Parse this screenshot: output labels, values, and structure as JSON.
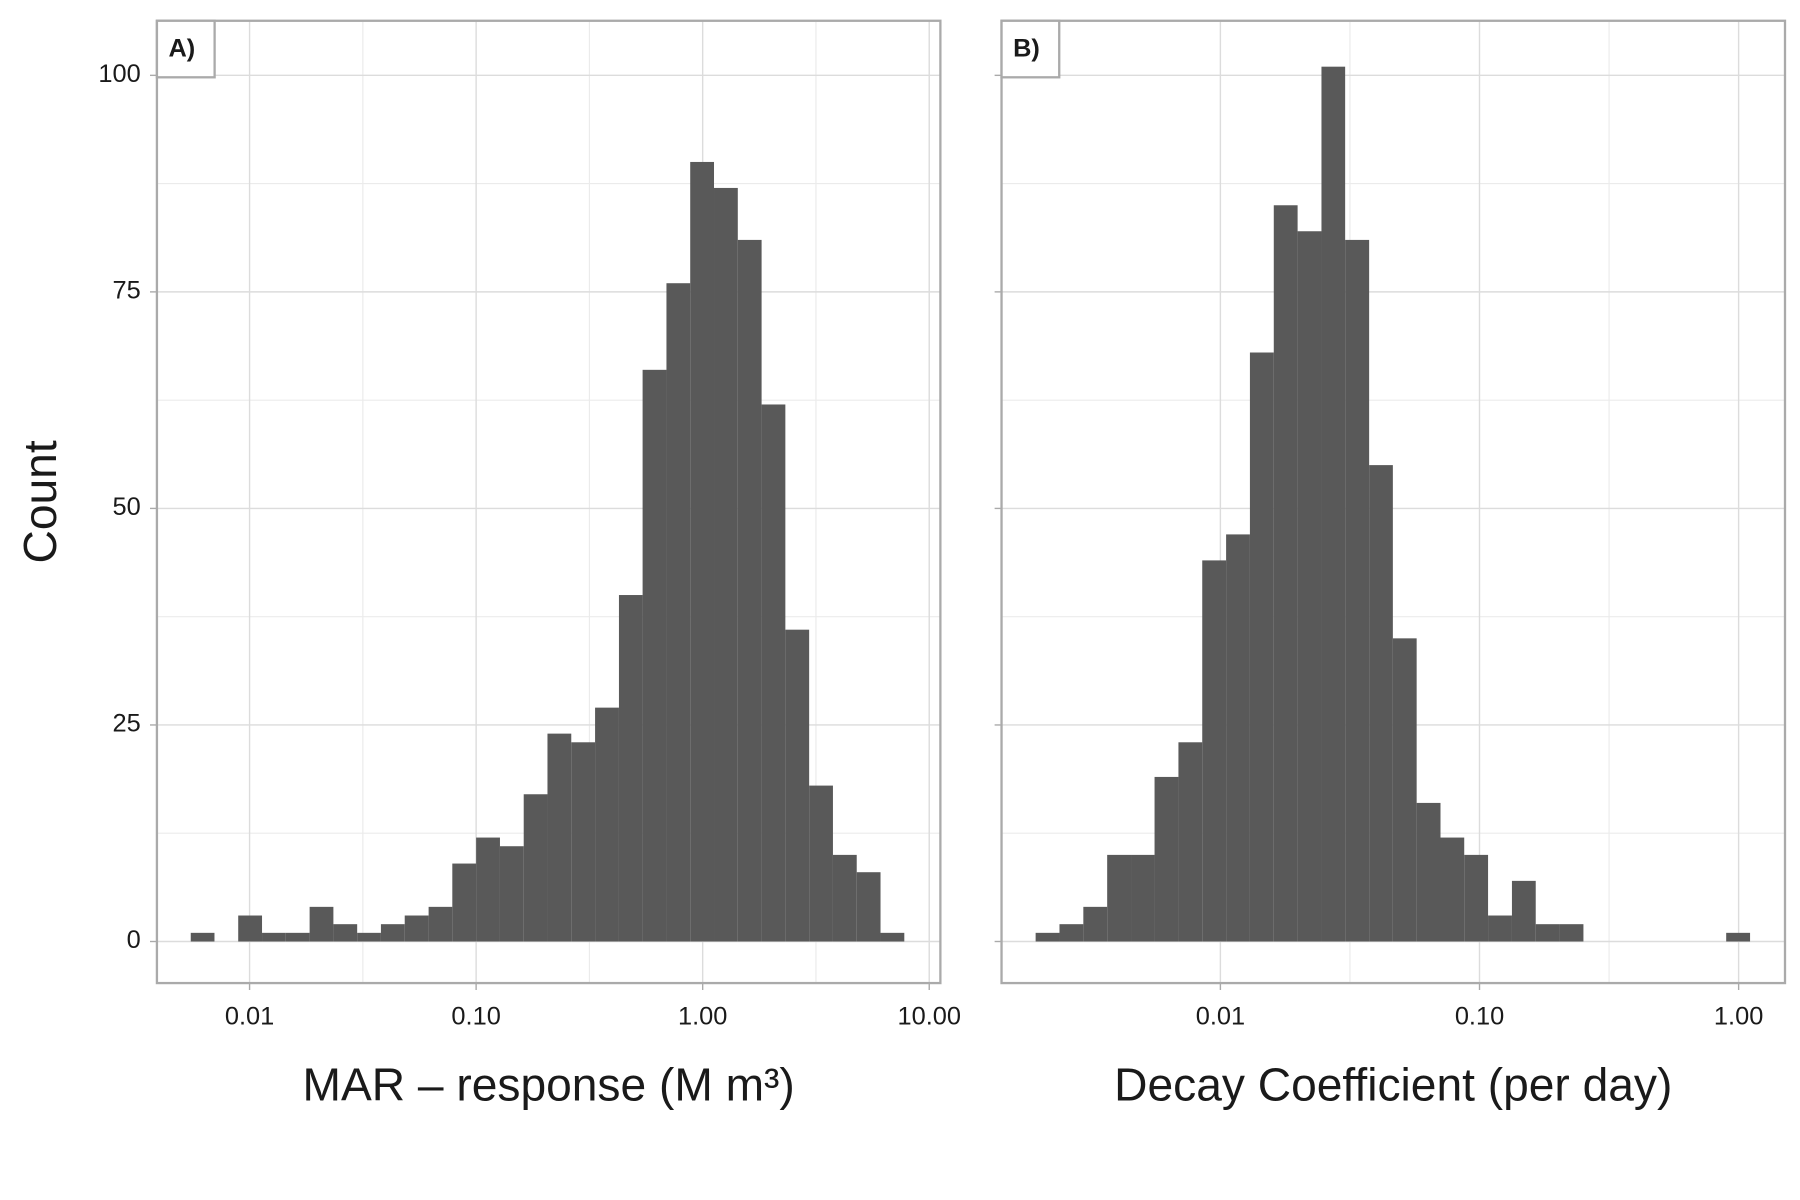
{
  "chart_data": [
    {
      "type": "histogram",
      "panel_label": "A)",
      "x_label": "MAR – response (M m³)",
      "y_label": "Count",
      "log_x": true,
      "grid": true,
      "color": "#595959",
      "ytick_labels": true,
      "bins": [
        0.0055,
        0.007,
        0.00891,
        0.01135,
        0.01445,
        0.01841,
        0.02344,
        0.02985,
        0.038,
        0.0484,
        0.0617,
        0.0785,
        0.1,
        0.1274,
        0.1622,
        0.2065,
        0.263,
        0.335,
        0.427,
        0.543,
        0.692,
        0.881,
        1.122,
        1.429,
        1.82,
        2.317,
        2.951,
        3.758,
        4.786,
        6.095,
        7.762
      ],
      "counts": [
        1,
        0,
        3,
        1,
        1,
        4,
        2,
        1,
        2,
        3,
        4,
        9,
        12,
        11,
        17,
        24,
        23,
        27,
        40,
        66,
        76,
        90,
        87,
        81,
        62,
        36,
        18,
        10,
        8,
        1
      ],
      "xlim": [
        0.0039,
        11.2
      ],
      "ylim": [
        -4.8,
        106.3
      ],
      "xticks": [
        0.01,
        {
          "value": 0.1,
          "label": "0.10"
        },
        {
          "value": 1,
          "label": "1.00"
        },
        {
          "value": 10,
          "label": "10.00"
        }
      ],
      "yticks": [
        0,
        25,
        50,
        75,
        100
      ]
    },
    {
      "type": "histogram",
      "panel_label": "B)",
      "x_label": "Decay Coefficient (per day)",
      "log_x": true,
      "grid": true,
      "color": "#595959",
      "ytick_labels": false,
      "bins": [
        0.001936,
        0.002393,
        0.002958,
        0.003656,
        0.004519,
        0.00557,
        0.006887,
        0.00851,
        0.01052,
        0.013,
        0.01607,
        0.01986,
        0.02455,
        0.0303,
        0.0375,
        0.0463,
        0.0572,
        0.0707,
        0.0873,
        0.1079,
        0.1334,
        0.1648,
        0.2037,
        0.2518,
        0.3112,
        0.3837,
        0.4742,
        0.5861,
        0.7244,
        0.8954,
        1.107
      ],
      "counts": [
        1,
        2,
        4,
        10,
        10,
        19,
        23,
        44,
        47,
        68,
        85,
        82,
        101,
        81,
        55,
        35,
        16,
        12,
        10,
        3,
        7,
        2,
        2,
        0,
        0,
        0,
        0,
        0,
        0,
        1
      ],
      "xlim": [
        0.00143,
        1.51
      ],
      "ylim": [
        -4.8,
        106.3
      ],
      "xticks": [
        0.01,
        {
          "value": 0.1,
          "label": "0.10"
        },
        {
          "value": 1,
          "label": "1.00"
        }
      ],
      "yticks": [
        0,
        25,
        50,
        75,
        100
      ]
    }
  ]
}
